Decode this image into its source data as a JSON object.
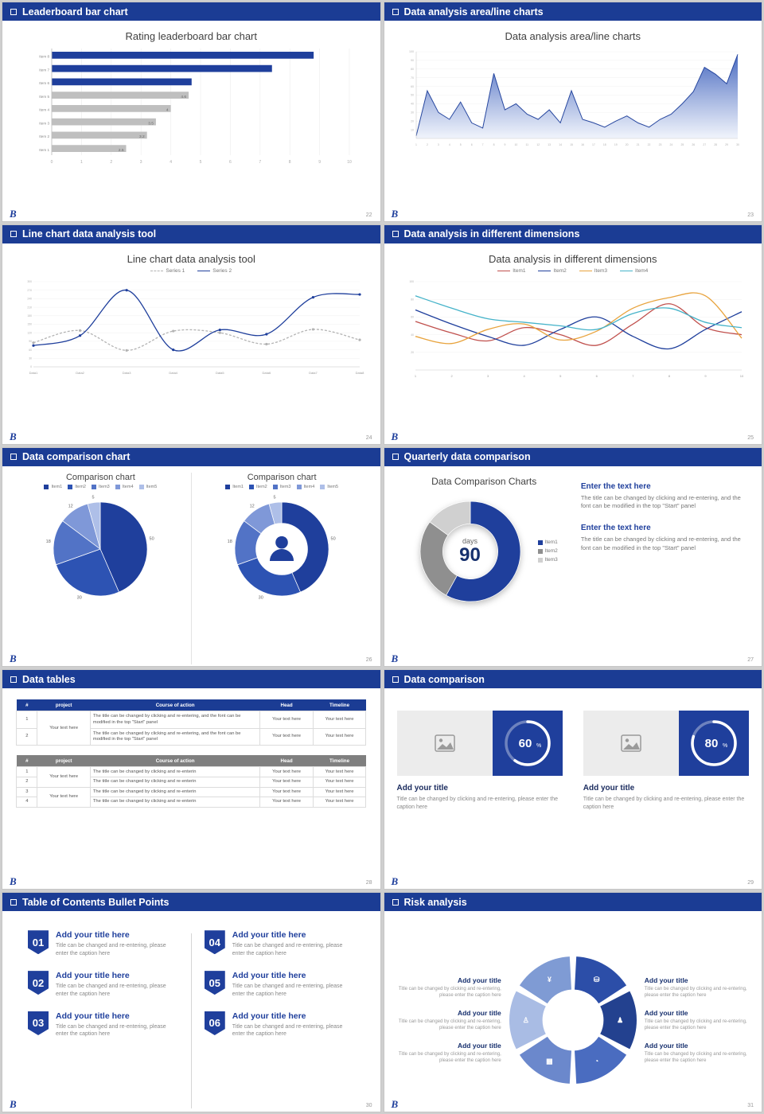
{
  "theme": {
    "accent": "#1f3f9c",
    "header_bg": "#1b3c94",
    "logo": "B"
  },
  "slides": {
    "s22": {
      "header": "Leaderboard bar chart",
      "page": "22",
      "title": "Rating leaderboard bar chart",
      "chart_data": {
        "type": "barh",
        "title": "Rating leaderboard bar chart",
        "categories": [
          "Item 8",
          "Item 7",
          "Item 6",
          "Item 5",
          "Item 4",
          "Item 3",
          "Item 2",
          "Item 1"
        ],
        "values": [
          8.8,
          7.4,
          4.7,
          4.6,
          4,
          3.5,
          3.2,
          2.5
        ],
        "labels": [
          "",
          "",
          "",
          "4.6",
          "4",
          "3.5",
          "3.2",
          "2.5"
        ],
        "colors": [
          "#1f3f9c",
          "#1f3f9c",
          "#1f3f9c",
          "#bfbfbf",
          "#bfbfbf",
          "#bfbfbf",
          "#bfbfbf",
          "#bfbfbf"
        ],
        "xlim": [
          0,
          10
        ],
        "xticks": [
          0,
          1,
          2,
          3,
          4,
          5,
          6,
          7,
          8,
          9,
          10
        ]
      }
    },
    "s23": {
      "header": "Data analysis area/line charts",
      "page": "23",
      "title": "Data analysis area/line charts",
      "chart_data": {
        "type": "area",
        "x_labels": [
          1,
          2,
          3,
          4,
          5,
          6,
          7,
          8,
          9,
          10,
          11,
          12,
          13,
          14,
          15,
          16,
          17,
          18,
          19,
          20,
          21,
          22,
          23,
          24,
          25,
          26,
          27,
          28,
          29,
          30
        ],
        "values": [
          3,
          55,
          30,
          22,
          42,
          18,
          12,
          75,
          33,
          40,
          28,
          22,
          33,
          18,
          55,
          22,
          18,
          13,
          20,
          26,
          18,
          13,
          22,
          28,
          40,
          54,
          82,
          74,
          63,
          97
        ],
        "ylim": [
          0,
          100
        ],
        "yticks": [
          10,
          20,
          30,
          40,
          50,
          60,
          70,
          80,
          90,
          100
        ],
        "stroke": "#27479f",
        "fill_top": "#3f62bd",
        "fill_bottom": "#eef2fb"
      }
    },
    "s24": {
      "header": "Line chart data analysis tool",
      "page": "24",
      "title": "Line chart data analysis tool",
      "chart_data": {
        "type": "line",
        "x": [
          "Data1",
          "Data2",
          "Data3",
          "Data4",
          "Data5",
          "Data6",
          "Data7",
          "Data8"
        ],
        "ylim": [
          0,
          300
        ],
        "yticks": [
          0,
          30,
          60,
          90,
          120,
          150,
          180,
          210,
          240,
          270,
          300
        ],
        "series": [
          {
            "name": "Series 1",
            "color": "#b3b3b3",
            "dash": "3 2",
            "marker": true,
            "smooth": true,
            "values": [
              85,
              128,
              58,
              126,
              120,
              80,
              132,
              95
            ]
          },
          {
            "name": "Series 2",
            "color": "#1f3f9c",
            "dash": "",
            "marker": true,
            "smooth": true,
            "values": [
              75,
              110,
              270,
              60,
              130,
              115,
              245,
              255
            ]
          }
        ]
      }
    },
    "s25": {
      "header": "Data analysis in different dimensions",
      "page": "25",
      "title": "Data analysis in different dimensions",
      "chart_data": {
        "type": "line",
        "x": [
          1,
          2,
          3,
          4,
          5,
          6,
          7,
          8,
          9,
          10
        ],
        "ylim": [
          0,
          100
        ],
        "yticks": [
          20,
          40,
          60,
          80,
          100
        ],
        "series": [
          {
            "name": "Item1",
            "color": "#c0504d",
            "smooth": true,
            "values": [
              55,
              42,
              33,
              48,
              40,
              28,
              52,
              75,
              48,
              40
            ]
          },
          {
            "name": "Item2",
            "color": "#1f3f9c",
            "smooth": true,
            "values": [
              68,
              52,
              38,
              28,
              46,
              60,
              38,
              24,
              46,
              66
            ]
          },
          {
            "name": "Item3",
            "color": "#e8a33d",
            "smooth": true,
            "values": [
              38,
              30,
              46,
              52,
              34,
              44,
              70,
              82,
              84,
              36
            ]
          },
          {
            "name": "Item4",
            "color": "#45b3c9",
            "smooth": true,
            "values": [
              84,
              70,
              58,
              54,
              50,
              46,
              64,
              70,
              54,
              48
            ]
          }
        ]
      }
    },
    "s26": {
      "header": "Data comparison chart",
      "page": "26",
      "left": {
        "title": "Comparison chart",
        "chart_data": {
          "type": "pie",
          "legend": [
            "Item1",
            "Item2",
            "Item3",
            "Item4",
            "Item5"
          ],
          "values": [
            50,
            30,
            18,
            12,
            5
          ],
          "colors": [
            "#1f3f9c",
            "#2d53b3",
            "#5273c6",
            "#7f98d8",
            "#aebfe8"
          ],
          "show_labels": true
        }
      },
      "right": {
        "title": "Comparison chart",
        "chart_data": {
          "type": "pie",
          "donut": true,
          "center_icon": "person",
          "legend": [
            "Item1",
            "Item2",
            "Item3",
            "Item4",
            "Item5"
          ],
          "values": [
            50,
            30,
            18,
            12,
            5
          ],
          "colors": [
            "#1f3f9c",
            "#2d53b3",
            "#5273c6",
            "#7f98d8",
            "#aebfe8"
          ],
          "show_labels": true
        }
      }
    },
    "s27": {
      "header": "Quarterly data comparison",
      "page": "27",
      "title": "Data Comparison Charts",
      "chart_data": {
        "type": "pie",
        "donut": true,
        "show_labels": false,
        "legend": [
          "Item1",
          "Item2",
          "Item3"
        ],
        "values": [
          58,
          27,
          15
        ],
        "colors": [
          "#1f3f9c",
          "#8f8f8f",
          "#d0d0d0"
        ]
      },
      "center": {
        "label": "days",
        "value": "90"
      },
      "blocks": [
        {
          "heading": "Enter the text here",
          "body": "The title can be changed by clicking and re-entering, and the font can be modified in the top \"Start\" panel"
        },
        {
          "heading": "Enter the text here",
          "body": "The title can be changed by clicking and re-entering, and the font can be modified in the top \"Start\" panel"
        }
      ]
    },
    "s28": {
      "header": "Data tables",
      "page": "28",
      "t1": {
        "headers": [
          "#",
          "project",
          "Course of action",
          "Head",
          "Timeline"
        ],
        "project": "Your text here",
        "rows": [
          {
            "num": "1",
            "course": "The title can be changed by clicking and re-entering, and the font can be modified in the top \"Start\" panel",
            "head": "Your text here",
            "timeline": "Your text here"
          },
          {
            "num": "2",
            "course": "The title can be changed by clicking and re-entering, and the font can be modified in the top \"Start\" panel",
            "head": "Your text here",
            "timeline": "Your text here"
          }
        ]
      },
      "t2": {
        "headers": [
          "#",
          "project",
          "Course of action",
          "Head",
          "Timeline"
        ],
        "project1": "Your text here",
        "project2": "Your text here",
        "rows": [
          {
            "num": "1",
            "course": "The title can be changed by clicking and re-enterin",
            "head": "Your text here",
            "timeline": "Your text here"
          },
          {
            "num": "2",
            "course": "The title can be changed by clicking and re-enterin",
            "head": "Your text here",
            "timeline": "Your text here"
          },
          {
            "num": "3",
            "course": "The title can be changed by clicking and re-enterin",
            "head": "Your text here",
            "timeline": "Your text here"
          },
          {
            "num": "4",
            "course": "The title can be changed by clicking and re-enterin",
            "head": "Your text here",
            "timeline": "Your text here"
          }
        ]
      }
    },
    "s29": {
      "header": "Data comparison",
      "page": "29",
      "cards": [
        {
          "chart_data": {
            "type": "ring",
            "value": 60,
            "suffix": "%"
          },
          "title": "Add your title",
          "body": "Title can be changed by clicking and re-entering, please enter the caption here"
        },
        {
          "chart_data": {
            "type": "ring",
            "value": 80,
            "suffix": "%"
          },
          "title": "Add your title",
          "body": "Title can be changed by clicking and re-entering, please enter the caption here"
        }
      ]
    },
    "s30": {
      "header": "Table of Contents Bullet Points",
      "page": "30",
      "items": [
        {
          "num": "01",
          "title": "Add your title here",
          "body": "Title can be changed and re-entering, please enter the caption here"
        },
        {
          "num": "02",
          "title": "Add your title here",
          "body": "Title can be changed and re-entering, please enter the caption here"
        },
        {
          "num": "03",
          "title": "Add your title here",
          "body": "Title can be changed and re-entering, please enter the caption here"
        },
        {
          "num": "04",
          "title": "Add your title here",
          "body": "Title can be changed and re-entering, please enter the caption here"
        },
        {
          "num": "05",
          "title": "Add your title here",
          "body": "Title can be changed and re-entering, please enter the caption here"
        },
        {
          "num": "06",
          "title": "Add your title here",
          "body": "Title can be changed and re-entering, please enter the caption here"
        }
      ]
    },
    "s31": {
      "header": "Risk analysis",
      "page": "31",
      "chart_data": {
        "type": "wheel",
        "colors": [
          "#a9bce4",
          "#7f9bd4",
          "#2c4ea8",
          "#23418f",
          "#4a6cc0",
          "#6b88cc"
        ],
        "icons": [
          "♙",
          "¥",
          "⛁",
          "♟",
          "◔",
          "▦"
        ],
        "icon_names": [
          "person",
          "money",
          "coins",
          "people",
          "pie-chart",
          "building"
        ]
      },
      "items": [
        {
          "title": "Add your title",
          "body": "Title can be changed by clicking and re-entering, please enter the caption here"
        },
        {
          "title": "Add your title",
          "body": "Title can be changed by clicking and re-entering, please enter the caption here"
        },
        {
          "title": "Add your title",
          "body": "Title can be changed by clicking and re-entering, please enter the caption here"
        },
        {
          "title": "Add your title",
          "body": "Title can be changed by clicking and re-entering, please enter the caption here"
        },
        {
          "title": "Add your title",
          "body": "Title can be changed by clicking and re-entering, please enter the caption here"
        },
        {
          "title": "Add your title",
          "body": "Title can be changed by clicking and re-entering, please enter the caption here"
        }
      ]
    }
  }
}
